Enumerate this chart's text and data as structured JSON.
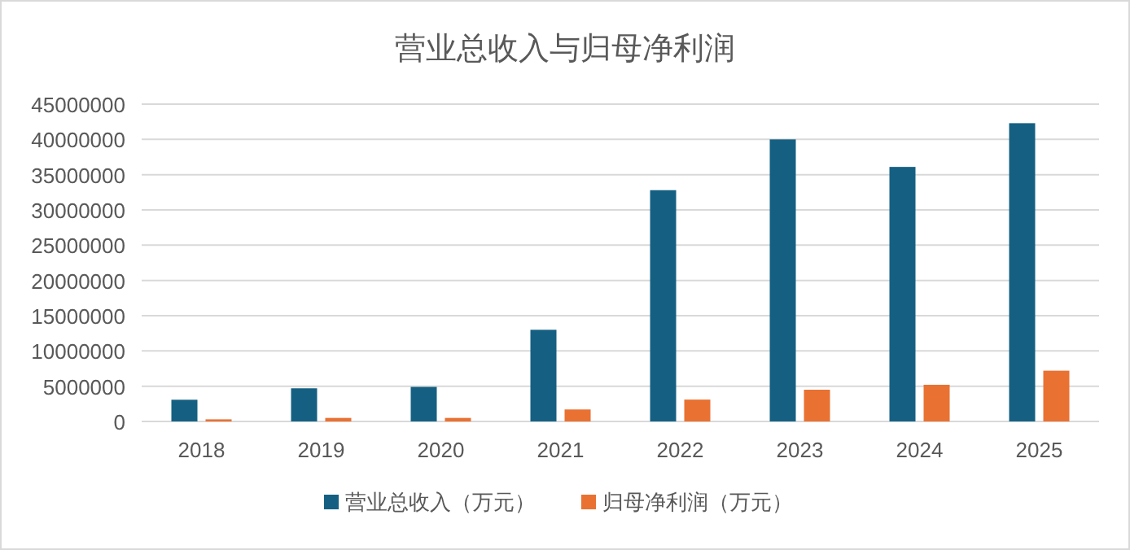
{
  "chart_data": {
    "type": "bar",
    "title": "营业总收入与归母净利润",
    "categories": [
      "2018",
      "2019",
      "2020",
      "2021",
      "2022",
      "2023",
      "2024",
      "2025"
    ],
    "series": [
      {
        "name": "营业总收入（万元）",
        "color": "#156082",
        "values": [
          3080000,
          4700000,
          4900000,
          13000000,
          32800000,
          40000000,
          36100000,
          42300000
        ]
      },
      {
        "name": "归母净利润（万元）",
        "color": "#e97132",
        "values": [
          300000,
          500000,
          500000,
          1700000,
          3100000,
          4500000,
          5200000,
          7200000
        ]
      }
    ],
    "ylim": [
      0,
      45000000
    ],
    "yticks": [
      0,
      5000000,
      10000000,
      15000000,
      20000000,
      25000000,
      30000000,
      35000000,
      40000000,
      45000000
    ],
    "grid": "y",
    "legend": "bottom"
  }
}
